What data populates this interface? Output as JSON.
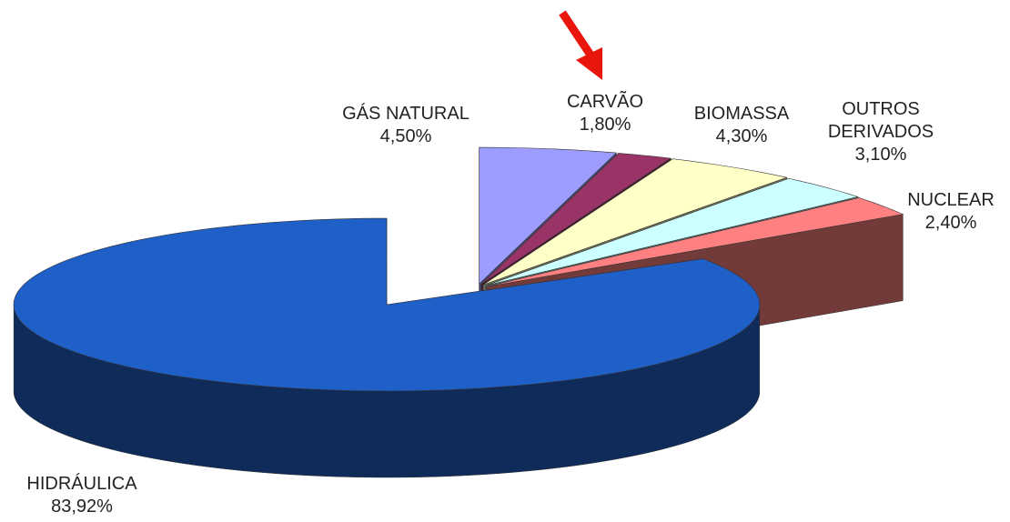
{
  "chart_data": {
    "type": "pie3d",
    "categories": [
      "GÁS NATURAL",
      "CARVÃO",
      "BIOMASSA",
      "OUTROS DERIVADOS",
      "NUCLEAR",
      "HIDRÁULICA"
    ],
    "values": [
      4.5,
      1.8,
      4.3,
      3.1,
      2.4,
      83.92
    ],
    "value_labels": [
      "4,50%",
      "1,80%",
      "4,30%",
      "3,10%",
      "2,40%",
      "83,92%"
    ],
    "colors": [
      "#9d9dff",
      "#9a3366",
      "#ffffc8",
      "#ccffff",
      "#ff8080",
      "#1f5fc8"
    ]
  }
}
